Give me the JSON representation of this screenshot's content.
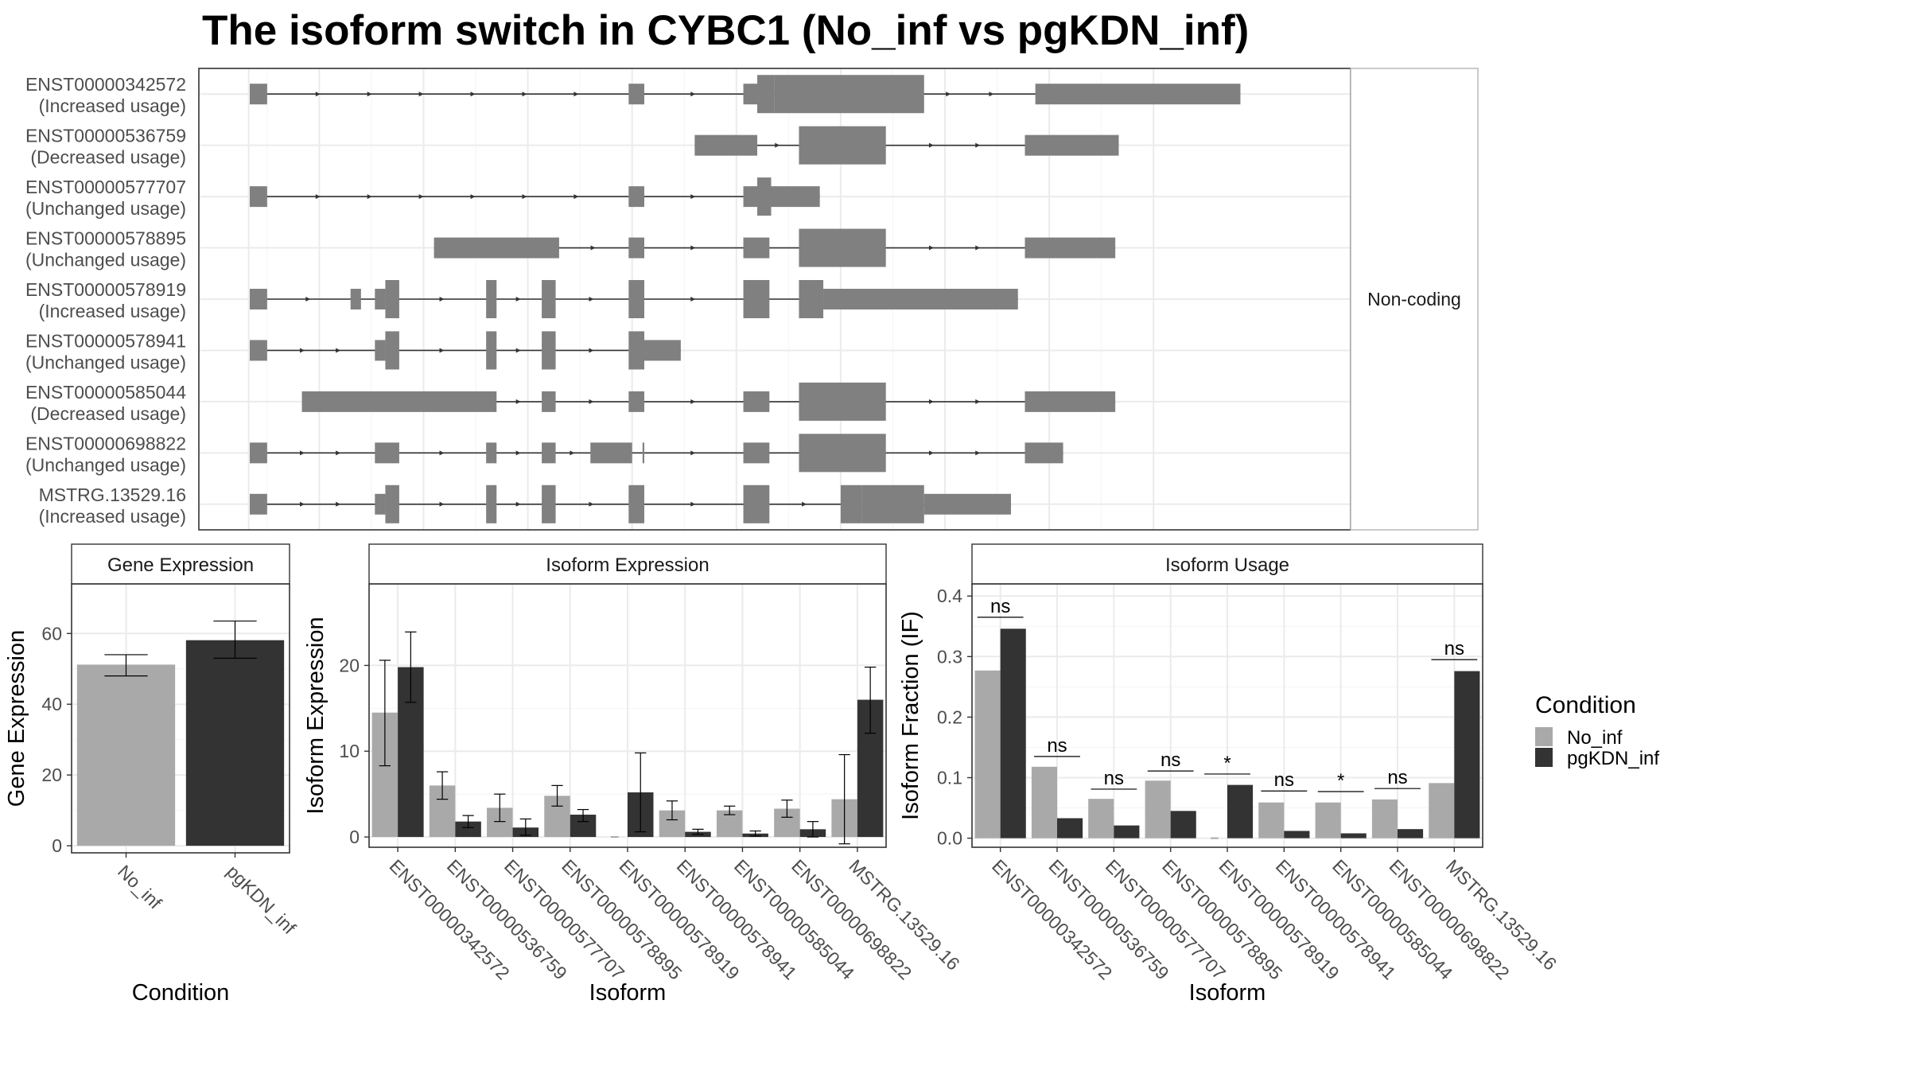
{
  "title": "The isoform switch in CYBC1 (No_inf vs pgKDN_inf)",
  "colors": {
    "no_inf": "#a9a9a9",
    "pgkdn_inf": "#333333",
    "feature": "#808080",
    "grid": "#ebebeb",
    "panel_border": "#333333",
    "strip_fill": "#ffffff",
    "text": "#000000",
    "axis_text": "#4d4d4d"
  },
  "structure": {
    "strip_label": "Non-coding",
    "transcripts": [
      {
        "id": "ENST00000342572",
        "usage": "(Increased usage)",
        "exons": [
          [
            0,
            0.5
          ],
          [
            10.9,
            11.35
          ],
          [
            14.2,
            14.6
          ],
          [
            15.8,
            16.4
          ],
          [
            22.6,
            28.5
          ]
        ],
        "thick": [
          [
            14.6,
            15.1
          ],
          [
            15.1,
            19.4
          ]
        ]
      },
      {
        "id": "ENST00000536759",
        "usage": "(Decreased usage)",
        "exons": [
          [
            12.8,
            14.6
          ],
          [
            22.3,
            25
          ]
        ],
        "thick": [
          [
            15.8,
            18.3
          ]
        ]
      },
      {
        "id": "ENST00000577707",
        "usage": "(Unchanged usage)",
        "exons": [
          [
            0,
            0.5
          ],
          [
            10.9,
            11.35
          ],
          [
            14.2,
            14.6
          ],
          [
            15,
            16.4
          ]
        ],
        "thick": [
          [
            14.6,
            15
          ]
        ]
      },
      {
        "id": "ENST00000578895",
        "usage": "(Unchanged usage)",
        "exons": [
          [
            5.3,
            8.9
          ],
          [
            10.9,
            11.35
          ],
          [
            14.2,
            14.95
          ],
          [
            22.3,
            24.9
          ]
        ],
        "thick": [
          [
            15.8,
            18.3
          ]
        ]
      },
      {
        "id": "ENST00000578919",
        "usage": "(Increased usage)",
        "exons": [
          [
            0,
            0.5
          ],
          [
            2.9,
            3.2
          ],
          [
            3.6,
            3.9
          ],
          [
            16.5,
            22.1
          ]
        ],
        "thick": [
          [
            3.9,
            4.3
          ],
          [
            6.8,
            7.1
          ],
          [
            8.4,
            8.8
          ],
          [
            10.9,
            11.35
          ],
          [
            14.2,
            14.95
          ],
          [
            15.8,
            16.5
          ]
        ]
      },
      {
        "id": "ENST00000578941",
        "usage": "(Unchanged usage)",
        "exons": [
          [
            0,
            0.5
          ],
          [
            3.6,
            3.9
          ],
          [
            11.35,
            12.4
          ]
        ],
        "thick": [
          [
            3.9,
            4.3
          ],
          [
            6.8,
            7.1
          ],
          [
            8.4,
            8.8
          ],
          [
            10.9,
            11.35
          ]
        ]
      },
      {
        "id": "ENST00000585044",
        "usage": "(Decreased usage)",
        "exons": [
          [
            1.5,
            7.1
          ],
          [
            8.4,
            8.8
          ],
          [
            10.9,
            11.35
          ],
          [
            14.2,
            14.95
          ],
          [
            22.3,
            24.9
          ]
        ],
        "thick": [
          [
            15.8,
            18.3
          ]
        ]
      },
      {
        "id": "ENST00000698822",
        "usage": "(Unchanged usage)",
        "exons": [
          [
            0,
            0.5
          ],
          [
            3.6,
            4.3
          ],
          [
            6.8,
            7.1
          ],
          [
            8.4,
            8.8
          ],
          [
            9.8,
            11
          ],
          [
            11.3,
            11.35
          ],
          [
            14.2,
            14.95
          ],
          [
            22.3,
            23.4
          ]
        ],
        "thick": [
          [
            15.8,
            18.3
          ]
        ]
      },
      {
        "id": "MSTRG.13529.16",
        "usage": "(Increased usage)",
        "exons": [
          [
            0,
            0.5
          ],
          [
            3.6,
            3.9
          ],
          [
            19.4,
            21.9
          ]
        ],
        "thick": [
          [
            3.9,
            4.3
          ],
          [
            6.8,
            7.1
          ],
          [
            8.4,
            8.8
          ],
          [
            10.9,
            11.35
          ],
          [
            14.2,
            14.95
          ],
          [
            17,
            17.6
          ],
          [
            17.6,
            19.4
          ]
        ]
      }
    ]
  },
  "chart_data": [
    {
      "type": "bar",
      "title": "Gene Expression",
      "xlabel": "Condition",
      "ylabel": "Gene Expression",
      "categories": [
        "No_inf",
        "pgKDN_inf"
      ],
      "values": [
        51.2,
        58.1
      ],
      "errors": [
        [
          48,
          54
        ],
        [
          53,
          63.5
        ]
      ],
      "ylim": [
        -2,
        74
      ],
      "yticks": [
        0,
        20,
        40,
        60
      ]
    },
    {
      "type": "bar",
      "title": "Isoform Expression",
      "xlabel": "Isoform",
      "ylabel": "Isoform Expression",
      "ylim": [
        -1.2,
        29.5
      ],
      "yticks": [
        0,
        10,
        20
      ],
      "categories": [
        "ENST00000342572",
        "ENST00000536759",
        "ENST00000577707",
        "ENST00000578895",
        "ENST00000578919",
        "ENST00000578941",
        "ENST00000585044",
        "ENST00000698822",
        "MSTRG.13529.16"
      ],
      "series": [
        {
          "name": "No_inf",
          "values": [
            14.5,
            6.0,
            3.4,
            4.8,
            0.0,
            3.1,
            3.1,
            3.3,
            4.4
          ],
          "errors": [
            [
              8.3,
              20.6
            ],
            [
              4.4,
              7.6
            ],
            [
              1.8,
              5.0
            ],
            [
              3.6,
              6.0
            ],
            [
              0,
              0
            ],
            [
              2.0,
              4.2
            ],
            [
              2.6,
              3.6
            ],
            [
              2.3,
              4.3
            ],
            [
              -0.8,
              9.6
            ]
          ]
        },
        {
          "name": "pgKDN_inf",
          "values": [
            19.8,
            1.8,
            1.1,
            2.6,
            5.2,
            0.6,
            0.4,
            0.9,
            16.0
          ],
          "errors": [
            [
              15.7,
              23.9
            ],
            [
              1.1,
              2.5
            ],
            [
              0.2,
              2.1
            ],
            [
              1.8,
              3.2
            ],
            [
              0.6,
              9.8
            ],
            [
              0.3,
              0.9
            ],
            [
              0.1,
              0.7
            ],
            [
              0,
              1.8
            ],
            [
              12.1,
              19.8
            ]
          ]
        }
      ]
    },
    {
      "type": "bar",
      "title": "Isoform Usage",
      "xlabel": "Isoform",
      "ylabel": "Isoform Fraction (IF)",
      "ylim": [
        -0.015,
        0.42
      ],
      "yticks": [
        0.0,
        0.1,
        0.2,
        0.3,
        0.4
      ],
      "ytick_labels": [
        "0.0",
        "0.1",
        "0.2",
        "0.3",
        "0.4"
      ],
      "categories": [
        "ENST00000342572",
        "ENST00000536759",
        "ENST00000577707",
        "ENST00000578895",
        "ENST00000578919",
        "ENST00000578941",
        "ENST00000585044",
        "ENST00000698822",
        "MSTRG.13529.16"
      ],
      "series": [
        {
          "name": "No_inf",
          "values": [
            0.277,
            0.118,
            0.065,
            0.095,
            0.0,
            0.059,
            0.059,
            0.064,
            0.091
          ]
        },
        {
          "name": "pgKDN_inf",
          "values": [
            0.346,
            0.033,
            0.021,
            0.045,
            0.088,
            0.012,
            0.008,
            0.015,
            0.276
          ]
        }
      ],
      "significance": [
        "ns",
        "ns",
        "ns",
        "ns",
        "*",
        "ns",
        "*",
        "ns",
        "ns"
      ],
      "significance_levels": [
        0.365,
        0.135,
        0.081,
        0.111,
        0.106,
        0.078,
        0.077,
        0.082,
        0.295
      ]
    }
  ],
  "legend": {
    "title": "Condition",
    "items": [
      {
        "label": "No_inf",
        "color": "#a9a9a9"
      },
      {
        "label": "pgKDN_inf",
        "color": "#333333"
      }
    ]
  }
}
